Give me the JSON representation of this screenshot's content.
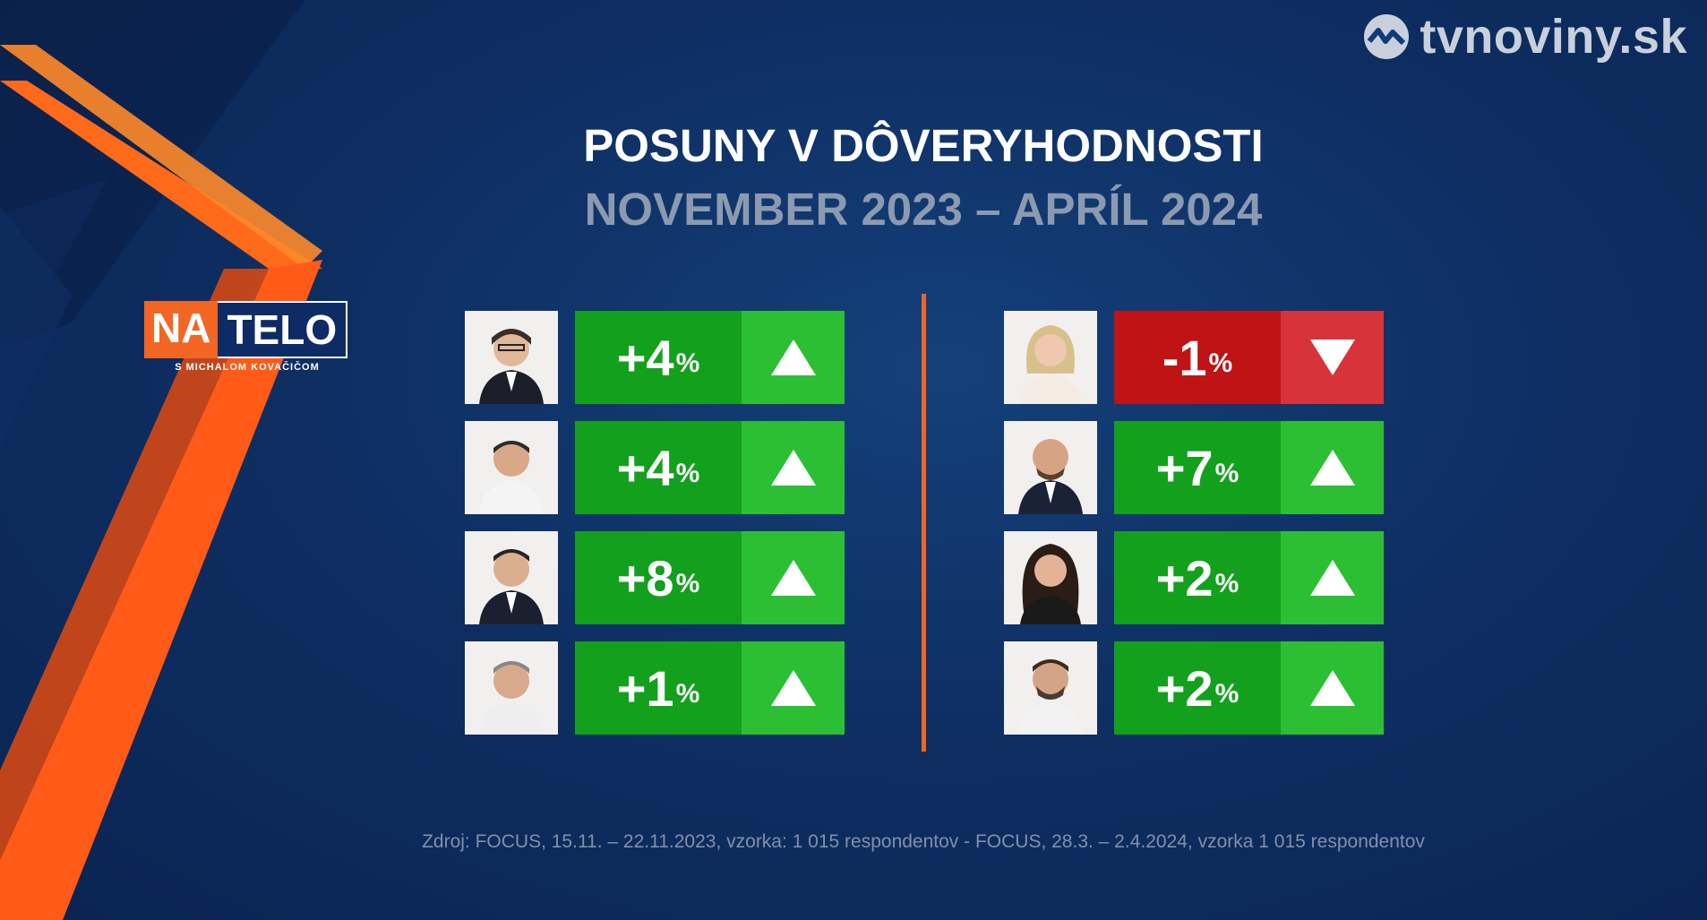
{
  "brand": {
    "name": "tvnoviny.sk",
    "color": "#c8d0dc"
  },
  "logo": {
    "part1": "NA",
    "part2": "TELO",
    "subtitle": "S MICHALOM KOVAČIČOM"
  },
  "title": "POSUNY V DÔVERYHODNOSTI",
  "subtitle": "NOVEMBER 2023 – APRÍL 2024",
  "colors": {
    "accent": "#f26522",
    "up": "#13a01d",
    "up_arrow": "#2cbf34",
    "down": "#bf1316",
    "down_arrow": "#d9333a"
  },
  "left": [
    {
      "value": "+4",
      "unit": "%",
      "direction": "up",
      "icon": "triangle-up-icon"
    },
    {
      "value": "+4",
      "unit": "%",
      "direction": "up",
      "icon": "triangle-up-icon"
    },
    {
      "value": "+8",
      "unit": "%",
      "direction": "up",
      "icon": "triangle-up-icon"
    },
    {
      "value": "+1",
      "unit": "%",
      "direction": "up",
      "icon": "triangle-up-icon"
    }
  ],
  "right": [
    {
      "value": "-1",
      "unit": "%",
      "direction": "down",
      "icon": "triangle-down-icon"
    },
    {
      "value": "+7",
      "unit": "%",
      "direction": "up",
      "icon": "triangle-up-icon"
    },
    {
      "value": "+2",
      "unit": "%",
      "direction": "up",
      "icon": "triangle-up-icon"
    },
    {
      "value": "+2",
      "unit": "%",
      "direction": "up",
      "icon": "triangle-up-icon"
    }
  ],
  "source": "Zdroj: FOCUS, 15.11. – 22.11.2023, vzorka: 1 015 respondentov - FOCUS, 28.3. – 2.4.2024, vzorka 1 015 respondentov"
}
